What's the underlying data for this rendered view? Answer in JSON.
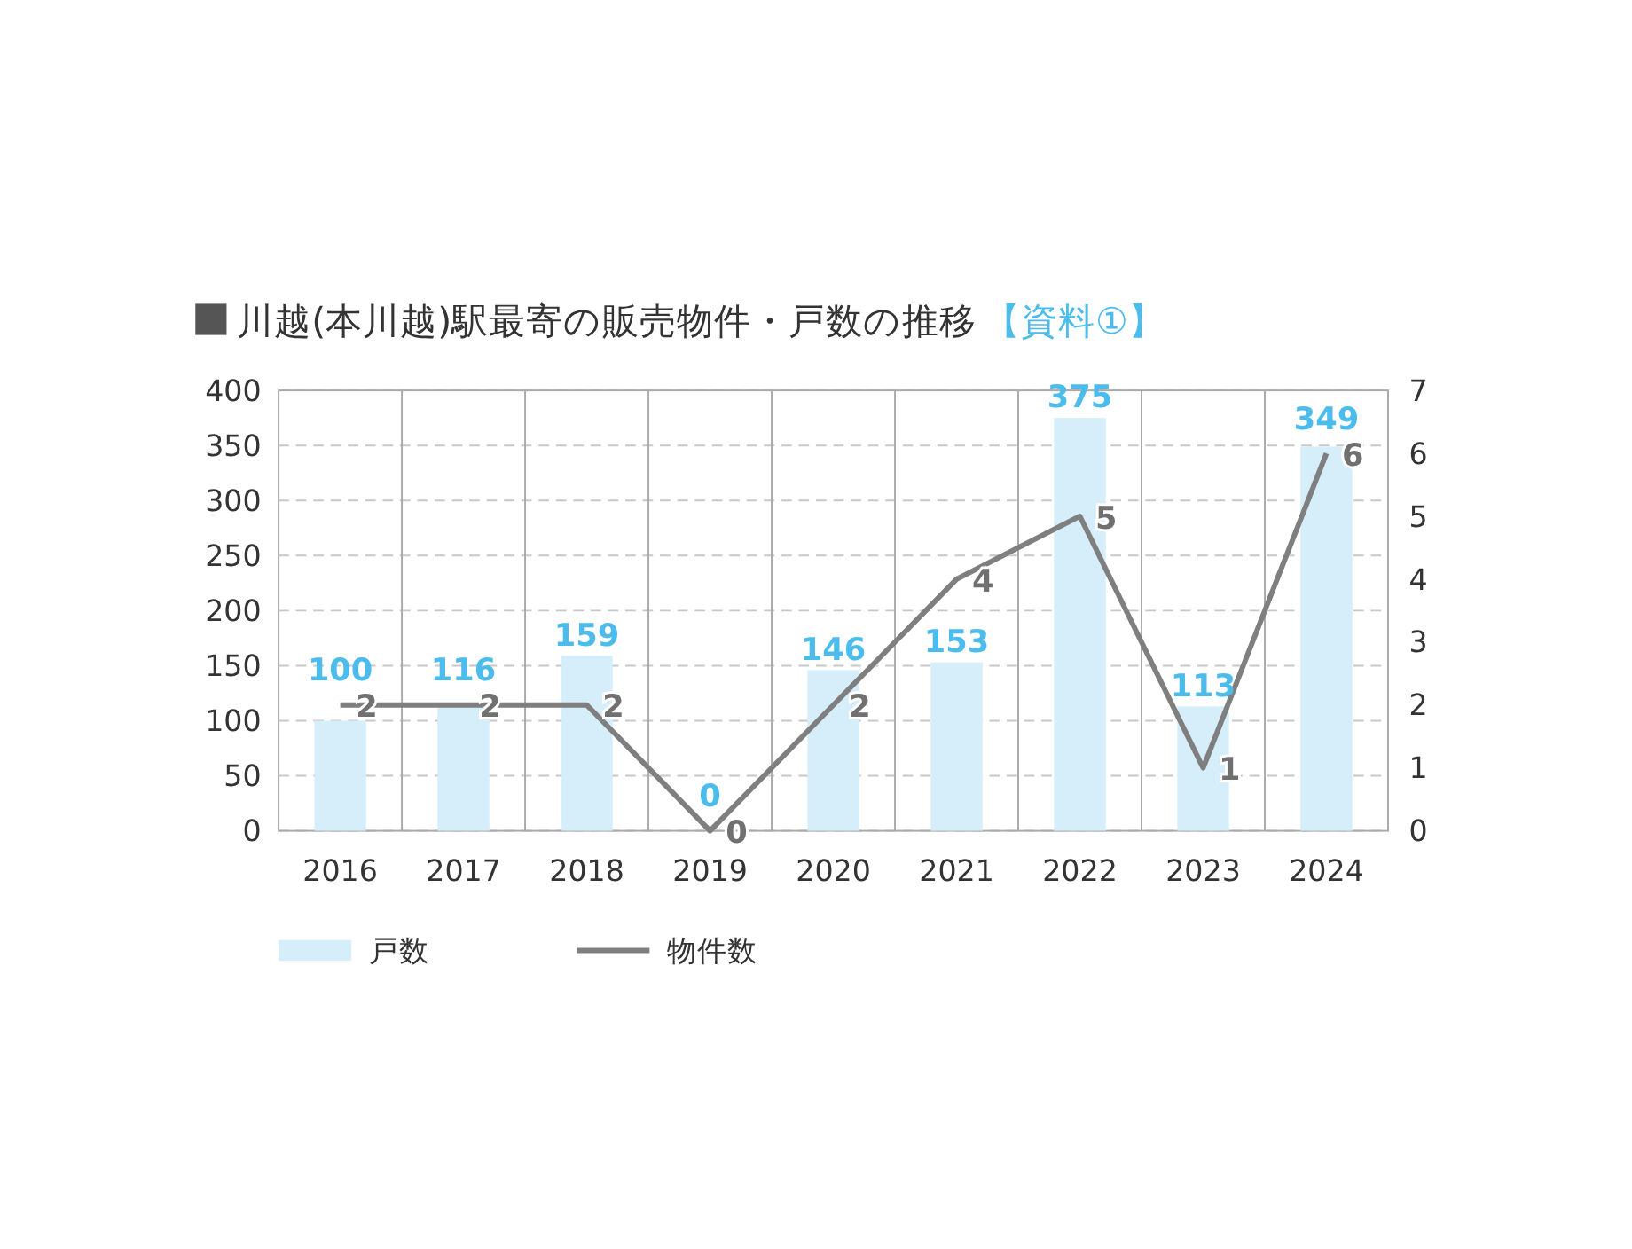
{
  "chart_data": {
    "type": "bar",
    "title": "川越(本川越)駅最寄の販売物件・戸数の推移",
    "subtitle": "【資料①】",
    "categories": [
      "2016",
      "2017",
      "2018",
      "2019",
      "2020",
      "2021",
      "2022",
      "2023",
      "2024"
    ],
    "series": [
      {
        "name": "戸数",
        "color": "#d6eefa",
        "values": [
          100,
          116,
          159,
          0,
          146,
          153,
          375,
          113,
          349
        ]
      },
      {
        "name": "物件数",
        "type": "line",
        "axis": "y2",
        "color": "#7f7f7f",
        "values": [
          2,
          2,
          2,
          0,
          2,
          4,
          5,
          1,
          6
        ]
      }
    ],
    "ylim": [
      0,
      400
    ],
    "yticks": [
      0,
      50,
      100,
      150,
      200,
      250,
      300,
      350,
      400
    ],
    "y2lim": [
      0,
      7
    ],
    "y2ticks": [
      0,
      1,
      2,
      3,
      4,
      5,
      6,
      7
    ],
    "grid": true,
    "legend": "bottom left",
    "data_labels": true
  }
}
